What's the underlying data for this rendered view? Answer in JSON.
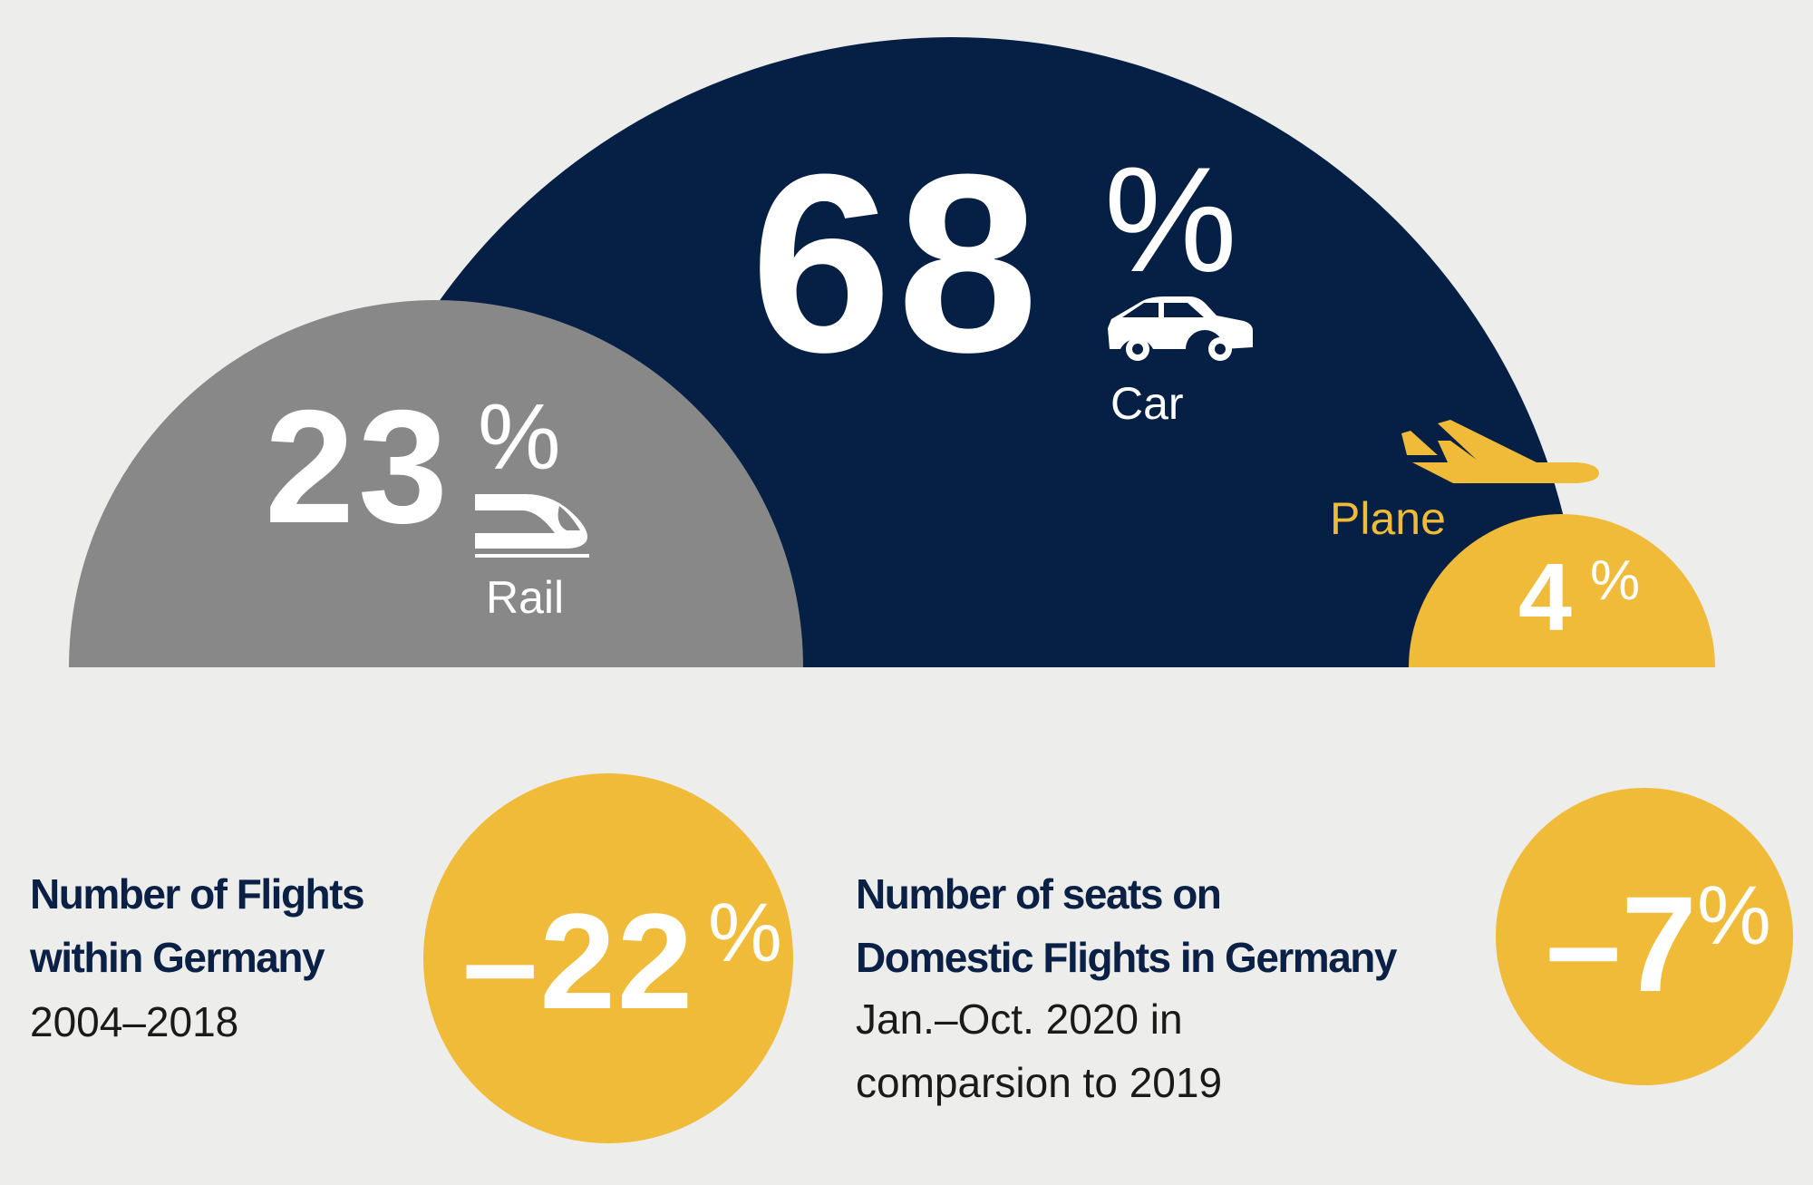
{
  "colors": {
    "background": "#ededeb",
    "car": "#061f44",
    "rail": "#888888",
    "plane": "#f0bb38",
    "heading": "#0a2045"
  },
  "modal_split": [
    {
      "mode": "Car",
      "value": "68",
      "unit": "%",
      "icon": "car-icon"
    },
    {
      "mode": "Rail",
      "value": "23",
      "unit": "%",
      "icon": "train-icon"
    },
    {
      "mode": "Plane",
      "value": "4",
      "unit": "%",
      "icon": "plane-icon"
    }
  ],
  "stats": [
    {
      "heading_lines": [
        "Number of Flights",
        "within Germany"
      ],
      "sub_lines": [
        "2004–2018"
      ],
      "value": "–22",
      "unit": "%"
    },
    {
      "heading_lines": [
        "Number of seats on",
        "Domestic Flights in Germany"
      ],
      "sub_lines": [
        "Jan.–Oct. 2020 in",
        "comparsion to 2019"
      ],
      "value": "–7",
      "unit": "%"
    }
  ]
}
